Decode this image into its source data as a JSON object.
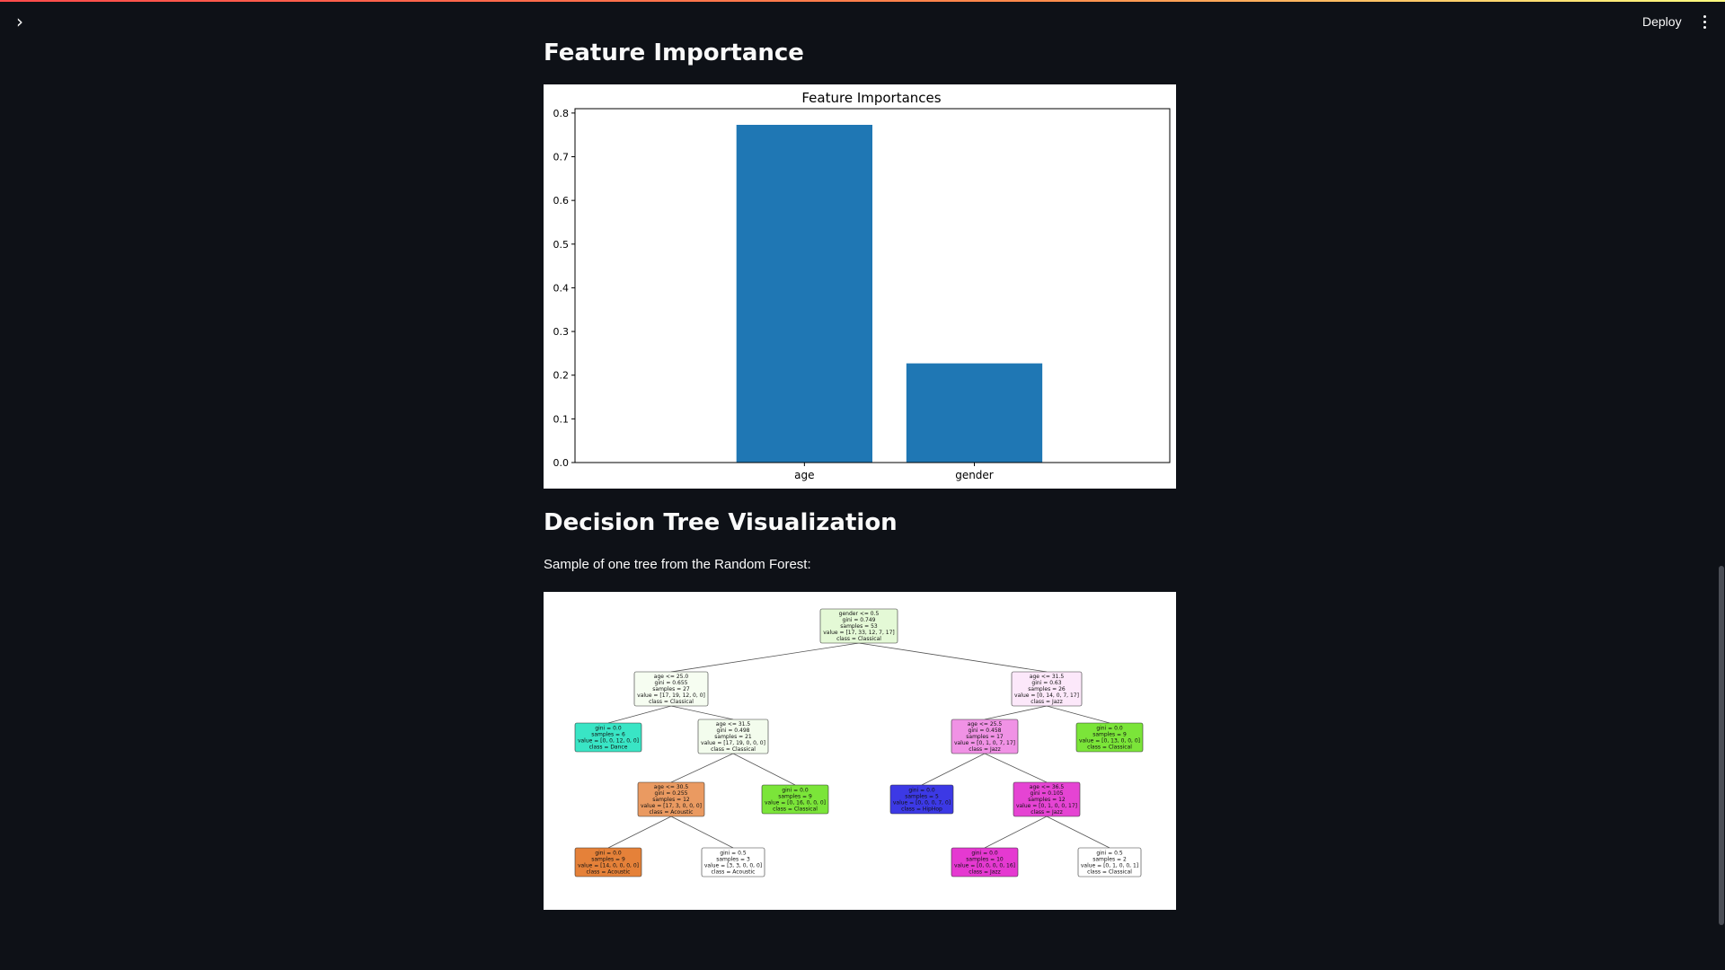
{
  "header": {
    "deploy_label": "Deploy",
    "sidebar_toggle_icon": "chevron-right-icon",
    "menu_icon": "kebab-menu-icon"
  },
  "sections": {
    "feature_importance_title": "Feature Importance",
    "decision_tree_title": "Decision Tree Visualization",
    "decision_tree_caption": "Sample of one tree from the Random Forest:"
  },
  "colors": {
    "background": "#0e1117",
    "bar": "#1f77b4",
    "accent_line": "#ff4b4b"
  },
  "chart_data": {
    "type": "bar",
    "title": "Feature Importances",
    "categories": [
      "age",
      "gender"
    ],
    "values": [
      0.773,
      0.227
    ],
    "xlabel": "",
    "ylabel": "",
    "ylim": [
      0,
      0.81
    ],
    "yticks": [
      "0.0",
      "0.1",
      "0.2",
      "0.3",
      "0.4",
      "0.5",
      "0.6",
      "0.7",
      "0.8"
    ],
    "grid": false,
    "legend": "none"
  },
  "tree": {
    "nodes": [
      {
        "id": "n0",
        "lines": [
          "gender <= 0.5",
          "gini = 0.749",
          "samples = 53",
          "value = [17, 33, 12, 7, 17]",
          "class = Classical"
        ],
        "fill": "#e4f9d6"
      },
      {
        "id": "n1",
        "lines": [
          "age <= 25.0",
          "gini = 0.655",
          "samples = 27",
          "value = [17, 19, 12, 0, 0]",
          "class = Classical"
        ],
        "fill": "#f6fdf1"
      },
      {
        "id": "n2",
        "lines": [
          "gini = 0.0",
          "samples = 6",
          "value = [0, 0, 12, 0, 0]",
          "class = Dance"
        ],
        "fill": "#39e5c5"
      },
      {
        "id": "n3",
        "lines": [
          "age <= 31.5",
          "gini = 0.498",
          "samples = 21",
          "value = [17, 19, 0, 0, 0]",
          "class = Classical"
        ],
        "fill": "#f3fced"
      },
      {
        "id": "n4",
        "lines": [
          "age <= 30.5",
          "gini = 0.255",
          "samples = 12",
          "value = [17, 3, 0, 0, 0]",
          "class = Acoustic"
        ],
        "fill": "#ea9a61"
      },
      {
        "id": "n5",
        "lines": [
          "gini = 0.0",
          "samples = 9",
          "value = [0, 16, 0, 0, 0]",
          "class = Classical"
        ],
        "fill": "#7be539"
      },
      {
        "id": "n6",
        "lines": [
          "gini = 0.0",
          "samples = 9",
          "value = [14, 0, 0, 0, 0]",
          "class = Acoustic"
        ],
        "fill": "#e58139"
      },
      {
        "id": "n7",
        "lines": [
          "gini = 0.5",
          "samples = 3",
          "value = [3, 3, 0, 0, 0]",
          "class = Acoustic"
        ],
        "fill": "#ffffff"
      },
      {
        "id": "n8",
        "lines": [
          "age <= 31.5",
          "gini = 0.63",
          "samples = 26",
          "value = [0, 14, 0, 7, 17]",
          "class = Jazz"
        ],
        "fill": "#fce8fa"
      },
      {
        "id": "n9",
        "lines": [
          "age <= 25.5",
          "gini = 0.458",
          "samples = 17",
          "value = [0, 1, 0, 7, 17]",
          "class = Jazz"
        ],
        "fill": "#f092e5"
      },
      {
        "id": "n10",
        "lines": [
          "gini = 0.0",
          "samples = 9",
          "value = [0, 13, 0, 0, 0]",
          "class = Classical"
        ],
        "fill": "#7be539"
      },
      {
        "id": "n11",
        "lines": [
          "gini = 0.0",
          "samples = 5",
          "value = [0, 0, 0, 7, 0]",
          "class = HipHop"
        ],
        "fill": "#3c39e5"
      },
      {
        "id": "n12",
        "lines": [
          "age <= 36.5",
          "gini = 0.105",
          "samples = 12",
          "value = [0, 1, 0, 0, 17]",
          "class = Jazz"
        ],
        "fill": "#e544d3"
      },
      {
        "id": "n13",
        "lines": [
          "gini = 0.0",
          "samples = 10",
          "value = [0, 0, 0, 0, 16]",
          "class = Jazz"
        ],
        "fill": "#e539d1"
      },
      {
        "id": "n14",
        "lines": [
          "gini = 0.5",
          "samples = 2",
          "value = [0, 1, 0, 0, 1]",
          "class = Classical"
        ],
        "fill": "#ffffff"
      }
    ],
    "edges": [
      [
        "n0",
        "n1"
      ],
      [
        "n0",
        "n8"
      ],
      [
        "n1",
        "n2"
      ],
      [
        "n1",
        "n3"
      ],
      [
        "n3",
        "n4"
      ],
      [
        "n3",
        "n5"
      ],
      [
        "n4",
        "n6"
      ],
      [
        "n4",
        "n7"
      ],
      [
        "n8",
        "n9"
      ],
      [
        "n8",
        "n10"
      ],
      [
        "n9",
        "n11"
      ],
      [
        "n9",
        "n12"
      ],
      [
        "n12",
        "n13"
      ],
      [
        "n12",
        "n14"
      ]
    ]
  }
}
